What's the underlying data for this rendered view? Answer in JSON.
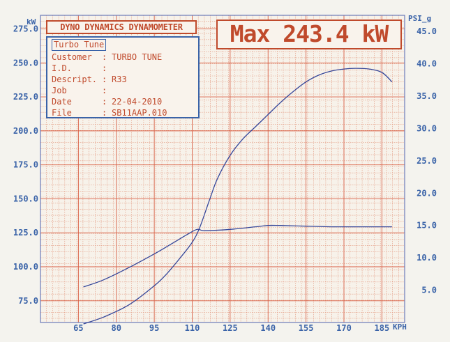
{
  "header": {
    "title": "DYNO DYNAMICS DYNAMOMETER",
    "max_label": "Max 243.4 kW"
  },
  "info": {
    "title": "Turbo Tune",
    "rows": [
      {
        "label": "Customer",
        "value": "TURBO TUNE"
      },
      {
        "label": "I.D.",
        "value": ""
      },
      {
        "label": "Descript.",
        "value": "R33"
      },
      {
        "label": "Job",
        "value": ""
      },
      {
        "label": "Date",
        "value": "22-04-2010"
      },
      {
        "label": "File",
        "value": "SB11AAP.010"
      }
    ]
  },
  "chart_data": {
    "type": "line",
    "left_axis_unit": "kW",
    "right_axis_unit": "PSI_g",
    "x_unit": "KPH",
    "x_ticks": [
      65,
      80,
      95,
      110,
      125,
      140,
      155,
      170,
      185
    ],
    "y_left_ticks": [
      75.0,
      100.0,
      125.0,
      150.0,
      175.0,
      200.0,
      225.0,
      250.0,
      275.0
    ],
    "y_right_ticks": [
      5.0,
      10.0,
      15.0,
      20.0,
      25.0,
      30.0,
      35.0,
      40.0,
      45.0
    ],
    "xlim": [
      50,
      194
    ],
    "ylim_left": [
      59,
      285
    ],
    "ylim_right": [
      0,
      47.5
    ],
    "grid": true,
    "series": [
      {
        "axis": "left",
        "color": "#36479a",
        "x": [
          67,
          75,
          85,
          95,
          100,
          105,
          110,
          113,
          117,
          120,
          125,
          130,
          135,
          140,
          145,
          150,
          155,
          160,
          165,
          170,
          175,
          180,
          185,
          189
        ],
        "y": [
          58,
          63,
          72,
          86,
          95,
          106,
          118,
          129,
          150,
          165,
          182,
          194,
          203,
          212,
          221,
          229,
          236,
          241,
          244,
          245.5,
          246,
          245.5,
          243,
          236
        ]
      },
      {
        "axis": "right",
        "color": "#36479a",
        "x": [
          67,
          75,
          85,
          95,
          102,
          108,
          112,
          115,
          125,
          135,
          140,
          145,
          155,
          165,
          175,
          189
        ],
        "y": [
          5.5,
          6.6,
          8.5,
          10.6,
          12.2,
          13.6,
          14.4,
          14.2,
          14.4,
          14.8,
          15.0,
          15.0,
          14.9,
          14.8,
          14.8,
          14.8
        ]
      }
    ]
  }
}
